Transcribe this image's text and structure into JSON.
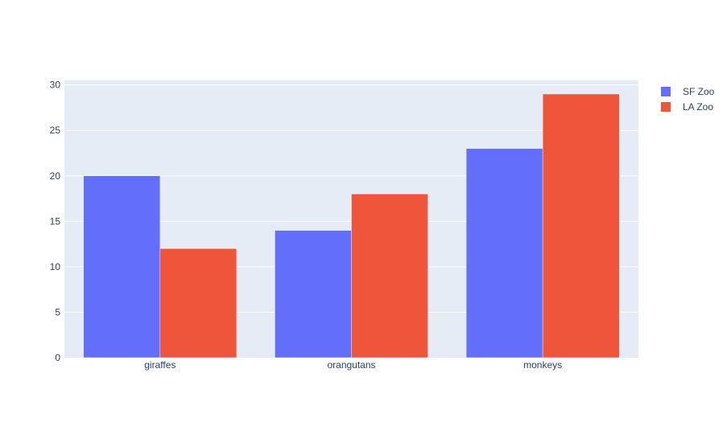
{
  "chart_data": {
    "type": "bar",
    "barmode": "group",
    "categories": [
      "giraffes",
      "orangutans",
      "monkeys"
    ],
    "series": [
      {
        "name": "SF Zoo",
        "values": [
          20,
          14,
          23
        ],
        "color": "#636efa"
      },
      {
        "name": "LA Zoo",
        "values": [
          12,
          18,
          29
        ],
        "color": "#ef553b"
      }
    ],
    "title": "",
    "xlabel": "",
    "ylabel": "",
    "ylim": [
      0,
      30.5
    ],
    "yticks": [
      0,
      5,
      10,
      15,
      20,
      25,
      30
    ],
    "grid": true,
    "legend_position": "top-right",
    "plot_background": "#e5ecf6",
    "text_color": "#2a3f5f"
  }
}
